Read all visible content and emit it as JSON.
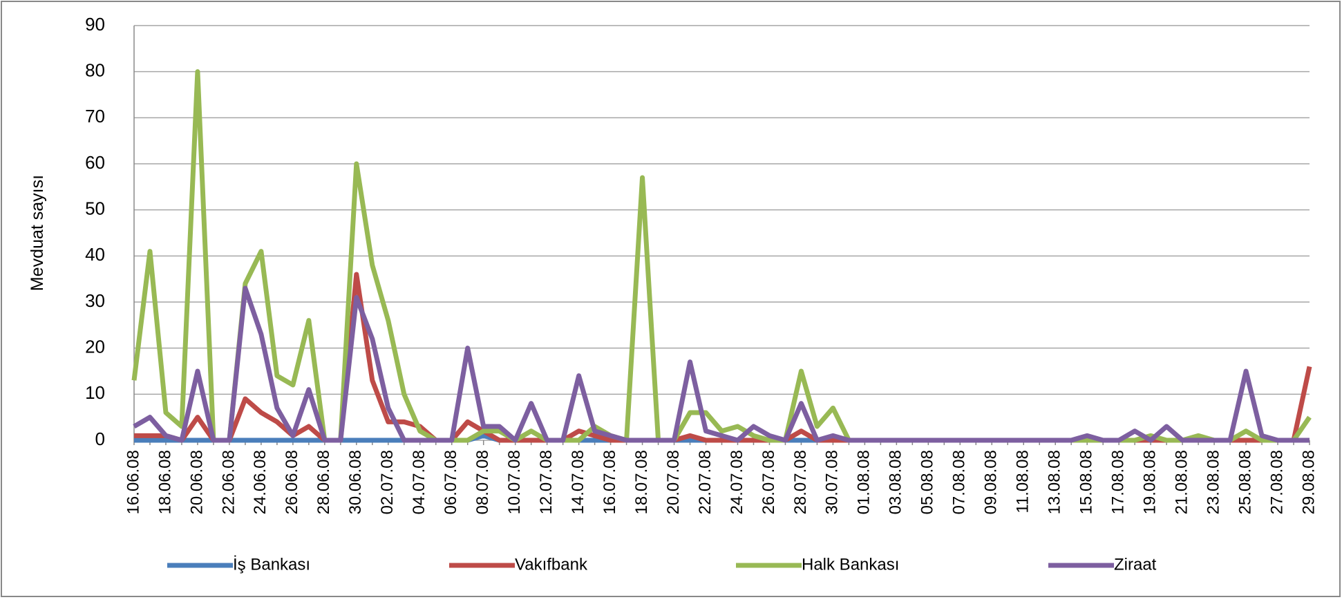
{
  "chart_data": {
    "type": "line",
    "y_label": "Mevduat sayısı",
    "categories": [
      "16.06.08",
      null,
      "18.06.08",
      null,
      "20.06.08",
      null,
      "22.06.08",
      null,
      "24.06.08",
      null,
      "26.06.08",
      null,
      "28.06.08",
      null,
      "30.06.08",
      null,
      "02.07.08",
      null,
      "04.07.08",
      null,
      "06.07.08",
      null,
      "08.07.08",
      null,
      "10.07.08",
      null,
      "12.07.08",
      null,
      "14.07.08",
      null,
      "16.07.08",
      null,
      "18.07.08",
      null,
      "20.07.08",
      null,
      "22.07.08",
      null,
      "24.07.08",
      null,
      "26.07.08",
      null,
      "28.07.08",
      null,
      "30.07.08",
      null,
      "01.08.08",
      null,
      "03.08.08",
      null,
      "05.08.08",
      null,
      "07.08.08",
      null,
      "09.08.08",
      null,
      "11.08.08",
      null,
      "13.08.08",
      null,
      "15.08.08",
      null,
      "17.08.08",
      null,
      "19.08.08",
      null,
      "21.08.08",
      null,
      "23.08.08",
      null,
      "25.08.08",
      null,
      "27.08.08",
      null,
      "29.08.08"
    ],
    "series": [
      {
        "name": "İş Bankası",
        "color": "#4a7ebb",
        "values": [
          0,
          0,
          0,
          0,
          0,
          0,
          0,
          0,
          0,
          0,
          0,
          0,
          0,
          0,
          0,
          0,
          0,
          0,
          0,
          0,
          0,
          0,
          1,
          0,
          0,
          0,
          0,
          0,
          0,
          0,
          0,
          0,
          0,
          0,
          0,
          0,
          0,
          0,
          0,
          0,
          0,
          0,
          0,
          0,
          0,
          0,
          0,
          0,
          0,
          0,
          0,
          0,
          0,
          0,
          0,
          0,
          0,
          0,
          0,
          0,
          0,
          0,
          0,
          0,
          0,
          0,
          0,
          0,
          0,
          0,
          0,
          0,
          0,
          0,
          0
        ]
      },
      {
        "name": "Vakıfbank",
        "color": "#be4b48",
        "values": [
          1,
          1,
          1,
          0,
          5,
          0,
          0,
          9,
          6,
          4,
          1,
          3,
          0,
          0,
          36,
          13,
          4,
          4,
          3,
          0,
          0,
          4,
          2,
          0,
          0,
          0,
          0,
          0,
          2,
          1,
          0,
          0,
          0,
          0,
          0,
          1,
          0,
          0,
          0,
          0,
          0,
          0,
          2,
          0,
          0,
          0,
          0,
          0,
          0,
          0,
          0,
          0,
          0,
          0,
          0,
          0,
          0,
          0,
          0,
          0,
          0,
          0,
          0,
          0,
          0,
          0,
          0,
          0,
          0,
          0,
          0,
          0,
          0,
          0,
          16
        ]
      },
      {
        "name": "Halk Bankası",
        "color": "#98b954",
        "values": [
          13,
          41,
          6,
          3,
          80,
          0,
          0,
          34,
          41,
          14,
          12,
          26,
          0,
          0,
          60,
          38,
          26,
          10,
          2,
          0,
          0,
          0,
          2,
          2,
          0,
          2,
          0,
          0,
          0,
          3,
          1,
          0,
          57,
          0,
          0,
          6,
          6,
          2,
          3,
          1,
          0,
          0,
          15,
          3,
          7,
          0,
          0,
          0,
          0,
          0,
          0,
          0,
          0,
          0,
          0,
          0,
          0,
          0,
          0,
          0,
          0,
          0,
          0,
          0,
          1,
          0,
          0,
          1,
          0,
          0,
          2,
          0,
          0,
          0,
          5
        ]
      },
      {
        "name": "Ziraat",
        "color": "#7d5fa0",
        "values": [
          3,
          5,
          1,
          0,
          15,
          0,
          0,
          33,
          23,
          7,
          1,
          11,
          0,
          0,
          31,
          22,
          7,
          0,
          0,
          0,
          0,
          20,
          3,
          3,
          0,
          8,
          0,
          0,
          14,
          2,
          1,
          0,
          0,
          0,
          0,
          17,
          2,
          1,
          0,
          3,
          1,
          0,
          8,
          0,
          1,
          0,
          0,
          0,
          0,
          0,
          0,
          0,
          0,
          0,
          0,
          0,
          0,
          0,
          0,
          0,
          1,
          0,
          0,
          2,
          0,
          3,
          0,
          0,
          0,
          0,
          15,
          1,
          0,
          0,
          0
        ]
      }
    ],
    "ylim": [
      0,
      90
    ],
    "yticks": [
      0,
      10,
      20,
      30,
      40,
      50,
      60,
      70,
      80,
      90
    ],
    "grid": true
  }
}
